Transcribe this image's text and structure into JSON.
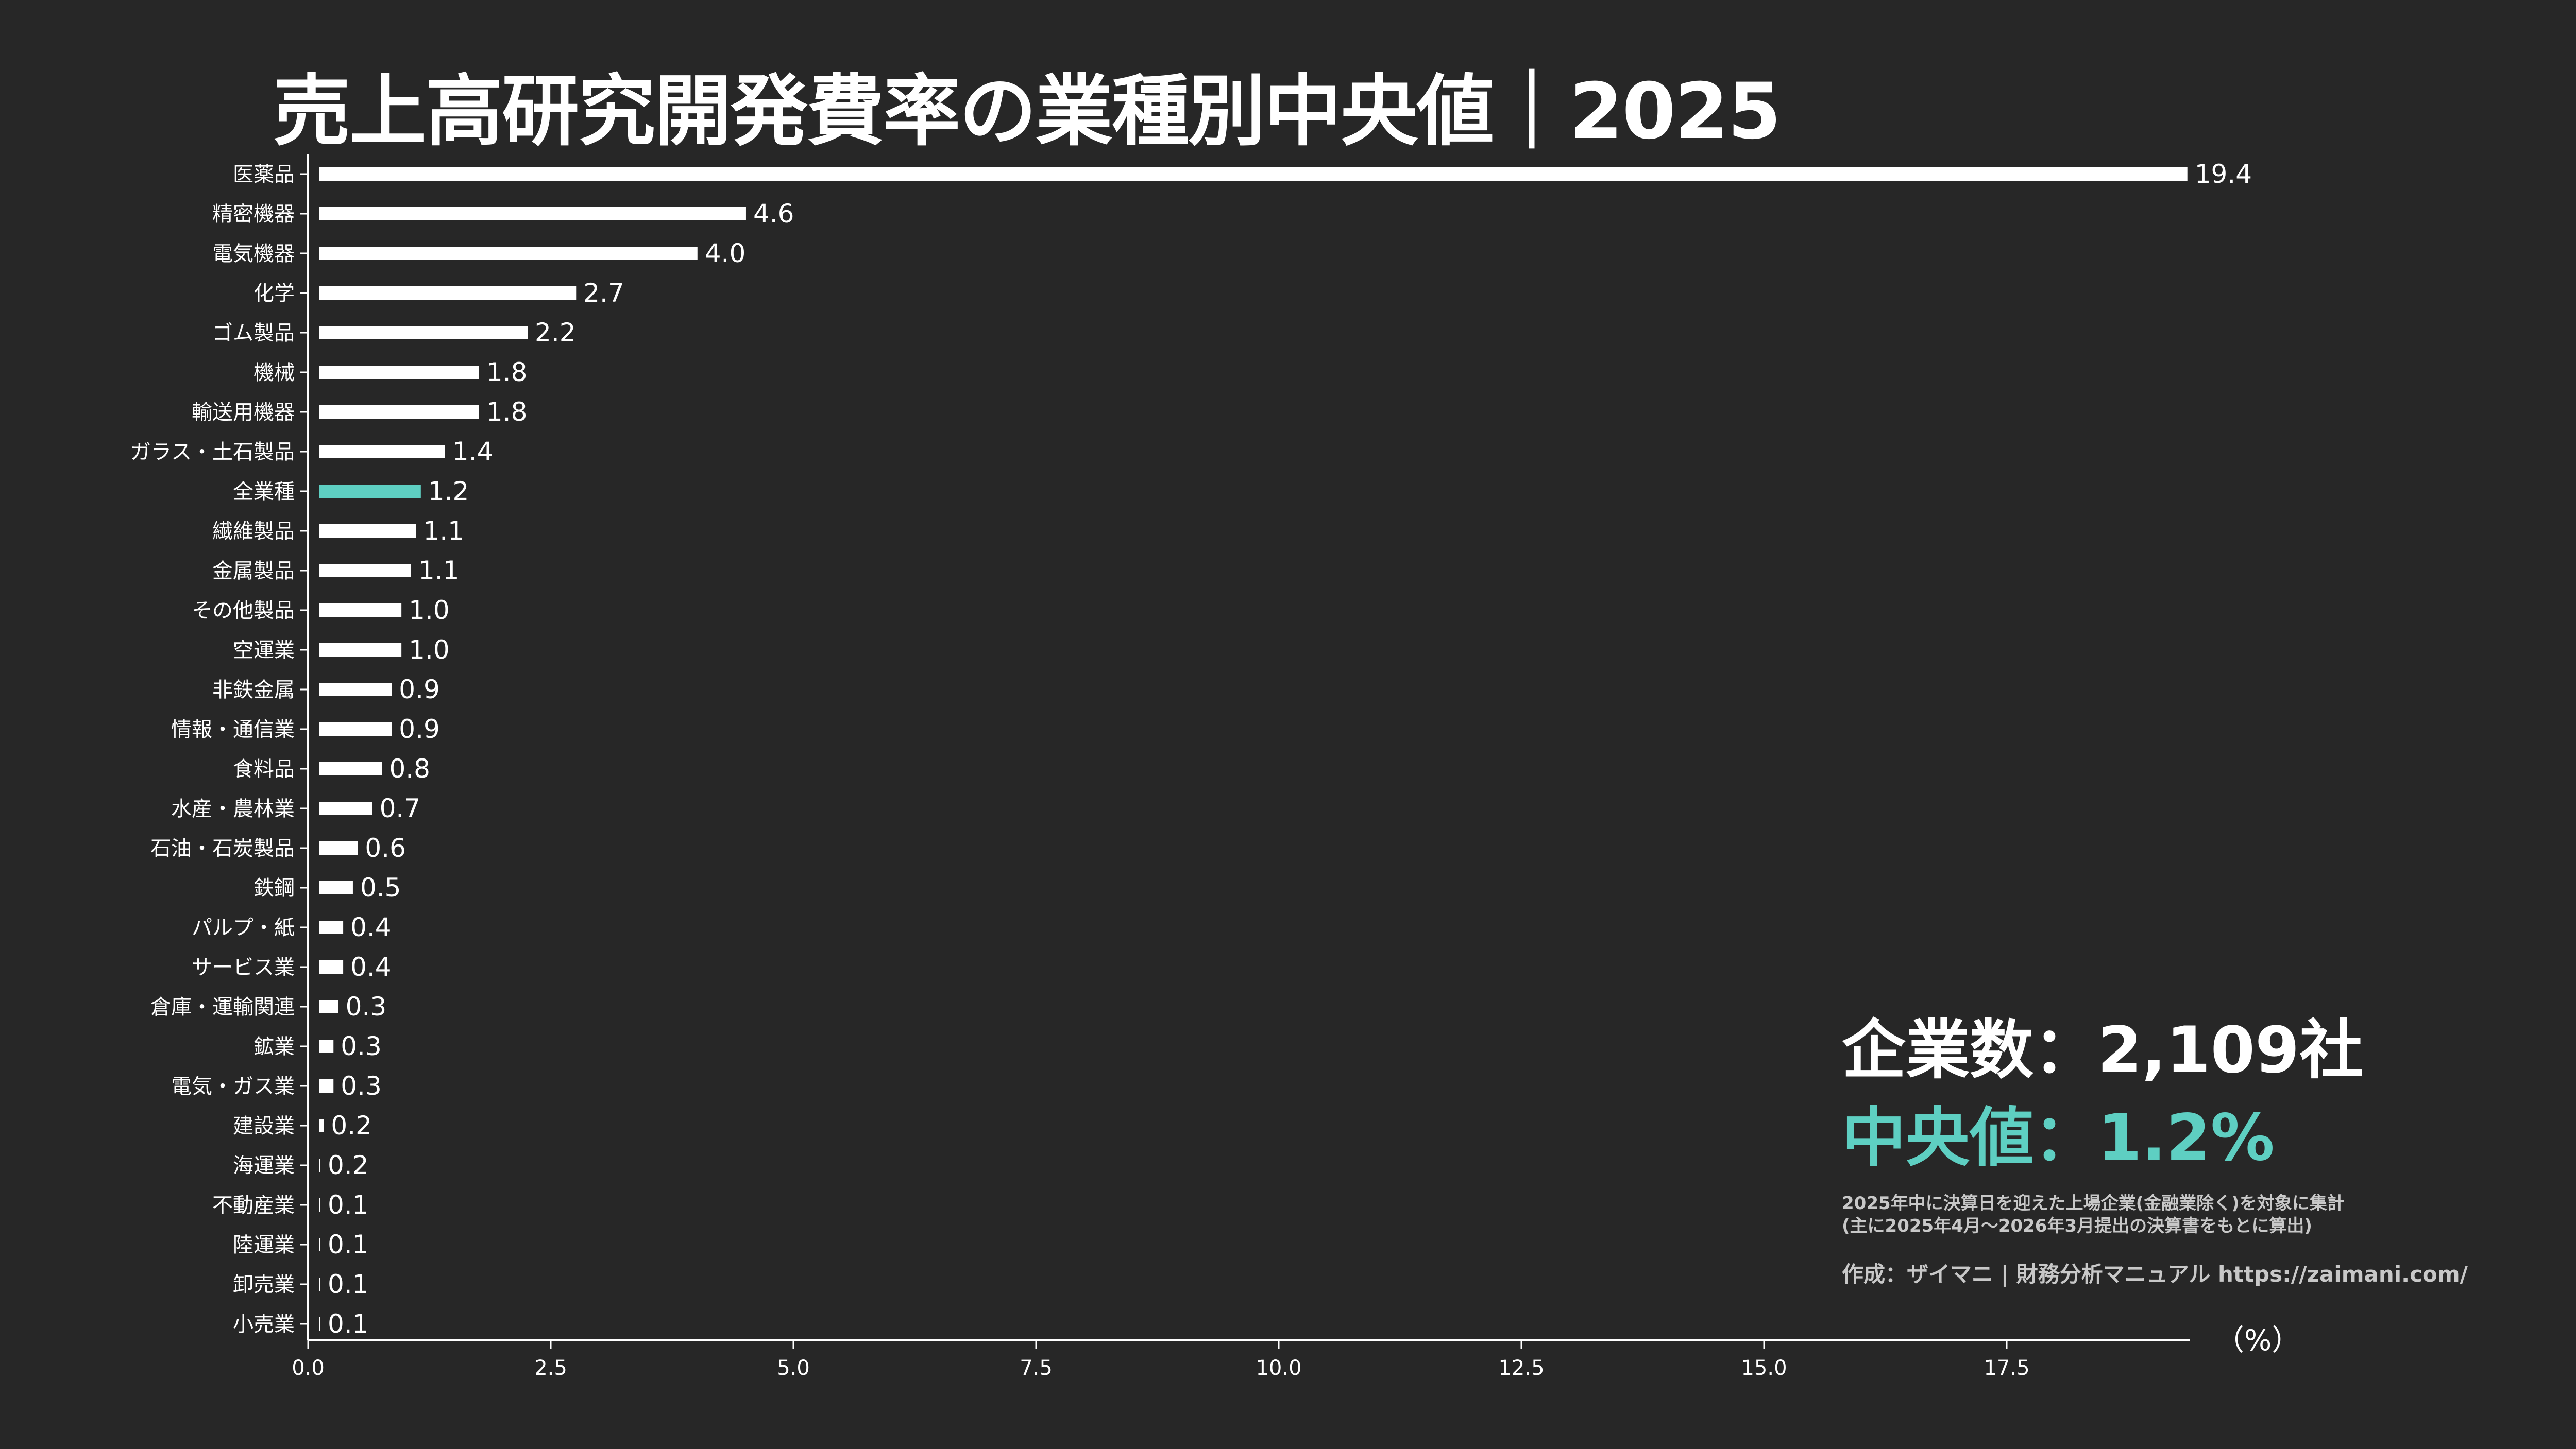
{
  "title": "売上高研究開発費率の業種別中央値｜2025",
  "stats": {
    "companies": "企業数：2,109社",
    "median": "中央値：1.2%"
  },
  "notes": [
    "2025年中に決算日を迎えた上場企業(金融業除く)を対象に集計",
    "(主に2025年4月〜2026年3月提出の決算書をもとに算出)"
  ],
  "credit": "作成：ザイマニ | 財務分析マニュアル https://zaimani.com/",
  "colors": {
    "background": "#272727",
    "bar": "#ffffff",
    "highlight": "#5ecfc2",
    "text": "#ffffff"
  },
  "chart_data": {
    "type": "bar",
    "orientation": "horizontal",
    "categories": [
      "医薬品",
      "精密機器",
      "電気機器",
      "化学",
      "ゴム製品",
      "機械",
      "輸送用機器",
      "ガラス・土石製品",
      "全業種",
      "繊維製品",
      "金属製品",
      "その他製品",
      "空運業",
      "非鉄金属",
      "情報・通信業",
      "食料品",
      "水産・農林業",
      "石油・石炭製品",
      "鉄鋼",
      "パルプ・紙",
      "サービス業",
      "倉庫・運輸関連",
      "鉱業",
      "電気・ガス業",
      "建設業",
      "海運業",
      "不動産業",
      "陸運業",
      "卸売業",
      "小売業"
    ],
    "values": [
      19.4,
      4.6,
      4.0,
      2.7,
      2.2,
      1.8,
      1.8,
      1.4,
      1.2,
      1.1,
      1.1,
      1.0,
      1.0,
      0.9,
      0.9,
      0.8,
      0.7,
      0.6,
      0.5,
      0.4,
      0.4,
      0.3,
      0.3,
      0.3,
      0.2,
      0.2,
      0.1,
      0.1,
      0.1,
      0.1
    ],
    "bar_values": [
      19.25,
      4.4,
      3.9,
      2.65,
      2.15,
      1.65,
      1.65,
      1.3,
      1.05,
      1.0,
      0.95,
      0.85,
      0.85,
      0.75,
      0.75,
      0.65,
      0.55,
      0.4,
      0.35,
      0.25,
      0.25,
      0.2,
      0.15,
      0.15,
      0.05,
      0.01,
      0.01,
      0.01,
      0.01,
      0.01
    ],
    "value_labels": [
      "19.4",
      "4.6",
      "4.0",
      "2.7",
      "2.2",
      "1.8",
      "1.8",
      "1.4",
      "1.2",
      "1.1",
      "1.1",
      "1.0",
      "1.0",
      "0.9",
      "0.9",
      "0.8",
      "0.7",
      "0.6",
      "0.5",
      "0.4",
      "0.4",
      "0.3",
      "0.3",
      "0.3",
      "0.2",
      "0.2",
      "0.1",
      "0.1",
      "0.1",
      "0.1"
    ],
    "highlight_category": "全業種",
    "xticks": [
      0.0,
      2.5,
      5.0,
      7.5,
      10.0,
      12.5,
      15.0,
      17.5
    ],
    "xtick_labels": [
      "0.0",
      "2.5",
      "5.0",
      "7.5",
      "10.0",
      "12.5",
      "15.0",
      "17.5"
    ],
    "xlim": [
      0,
      19.5
    ],
    "unit_label": "（%）",
    "grid": false,
    "legend": "none"
  }
}
